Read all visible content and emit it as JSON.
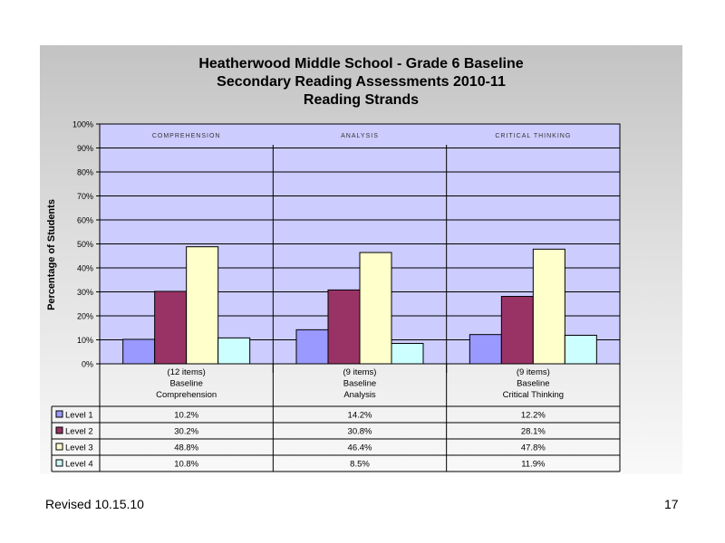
{
  "slide": {
    "footer_left": "Revised  10.15.10",
    "page_number": "17"
  },
  "chart_data": {
    "type": "bar",
    "title": [
      "Heatherwood Middle School - Grade 6 Baseline",
      "Secondary Reading Assessments 2010-11",
      "Reading Strands"
    ],
    "ylabel": "Percentage of Students",
    "ylim": [
      0,
      100
    ],
    "yticks": [
      "0%",
      "10%",
      "20%",
      "30%",
      "40%",
      "50%",
      "60%",
      "70%",
      "80%",
      "90%",
      "100%"
    ],
    "grid": true,
    "legend": "table-below",
    "strand_headers": [
      "COMPREHENSION",
      "ANALYSIS",
      "CRITICAL THINKING"
    ],
    "categories": [
      [
        "(12 items)",
        "Baseline",
        "Comprehension"
      ],
      [
        "(9 items)",
        "Baseline",
        "Analysis"
      ],
      [
        "(9 items)",
        "Baseline",
        "Critical Thinking"
      ]
    ],
    "series": [
      {
        "name": "Level 1",
        "color": "#9999ff",
        "values": [
          10.2,
          14.2,
          12.2
        ],
        "labels": [
          "10.2%",
          "14.2%",
          "12.2%"
        ]
      },
      {
        "name": "Level 2",
        "color": "#993366",
        "values": [
          30.2,
          30.8,
          28.1
        ],
        "labels": [
          "30.2%",
          "30.8%",
          "28.1%"
        ]
      },
      {
        "name": "Level 3",
        "color": "#ffffcc",
        "values": [
          48.8,
          46.4,
          47.8
        ],
        "labels": [
          "48.8%",
          "46.4%",
          "47.8%"
        ]
      },
      {
        "name": "Level 4",
        "color": "#ccffff",
        "values": [
          10.8,
          8.5,
          11.9
        ],
        "labels": [
          "10.8%",
          "8.5%",
          "11.9%"
        ]
      }
    ],
    "plot_background": "#ccccff"
  }
}
